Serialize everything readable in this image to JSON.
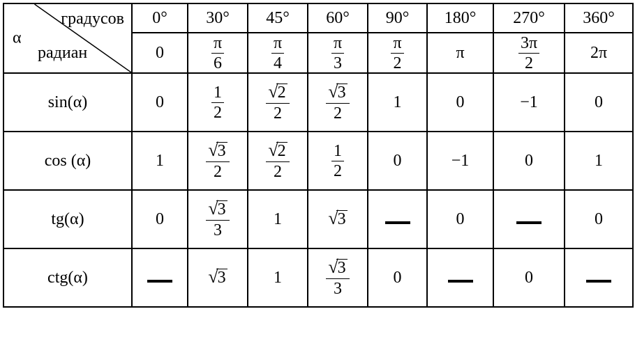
{
  "header": {
    "alpha": "α",
    "degrees_label": "градусов",
    "radians_label": "радиан",
    "angles_deg": [
      "0°",
      "30°",
      "45°",
      "60°",
      "90°",
      "180°",
      "270°",
      "360°"
    ],
    "angles_rad": [
      {
        "type": "plain",
        "v": "0"
      },
      {
        "type": "frac",
        "num": "π",
        "den": "6"
      },
      {
        "type": "frac",
        "num": "π",
        "den": "4"
      },
      {
        "type": "frac",
        "num": "π",
        "den": "3"
      },
      {
        "type": "frac",
        "num": "π",
        "den": "2"
      },
      {
        "type": "plain",
        "v": "π"
      },
      {
        "type": "frac",
        "num": "3π",
        "den": "2"
      },
      {
        "type": "plain",
        "v": "2π"
      }
    ]
  },
  "rows": [
    {
      "label": "sin(α)",
      "cells": [
        {
          "type": "plain",
          "v": "0"
        },
        {
          "type": "frac",
          "num": "1",
          "den": "2"
        },
        {
          "type": "sqrtfrac",
          "rad": "2",
          "den": "2"
        },
        {
          "type": "sqrtfrac",
          "rad": "3",
          "den": "2"
        },
        {
          "type": "plain",
          "v": "1"
        },
        {
          "type": "plain",
          "v": "0"
        },
        {
          "type": "plain",
          "v": "−1"
        },
        {
          "type": "plain",
          "v": "0"
        }
      ]
    },
    {
      "label": "cos (α)",
      "cells": [
        {
          "type": "plain",
          "v": "1"
        },
        {
          "type": "sqrtfrac",
          "rad": "3",
          "den": "2"
        },
        {
          "type": "sqrtfrac",
          "rad": "2",
          "den": "2"
        },
        {
          "type": "frac",
          "num": "1",
          "den": "2"
        },
        {
          "type": "plain",
          "v": "0"
        },
        {
          "type": "plain",
          "v": "−1"
        },
        {
          "type": "plain",
          "v": "0"
        },
        {
          "type": "plain",
          "v": "1"
        }
      ]
    },
    {
      "label": "tg(α)",
      "cells": [
        {
          "type": "plain",
          "v": "0"
        },
        {
          "type": "sqrtfrac",
          "rad": "3",
          "den": "3"
        },
        {
          "type": "plain",
          "v": "1"
        },
        {
          "type": "sqrt",
          "rad": "3"
        },
        {
          "type": "dash"
        },
        {
          "type": "plain",
          "v": "0"
        },
        {
          "type": "dash"
        },
        {
          "type": "plain",
          "v": "0"
        }
      ]
    },
    {
      "label": "ctg(α)",
      "cells": [
        {
          "type": "dash"
        },
        {
          "type": "sqrt",
          "rad": "3"
        },
        {
          "type": "plain",
          "v": "1"
        },
        {
          "type": "sqrtfrac",
          "rad": "3",
          "den": "3"
        },
        {
          "type": "plain",
          "v": "0"
        },
        {
          "type": "dash"
        },
        {
          "type": "plain",
          "v": "0"
        },
        {
          "type": "dash"
        }
      ]
    }
  ],
  "style": {
    "border_color": "#000000",
    "background": "#ffffff",
    "font_family": "Times New Roman",
    "base_fontsize": 24
  }
}
